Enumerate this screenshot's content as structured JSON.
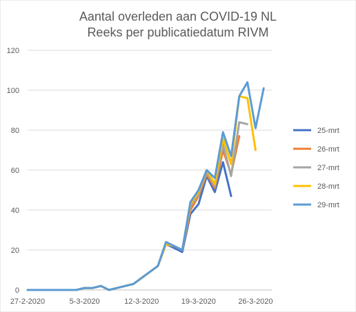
{
  "chart_data": {
    "type": "line",
    "title": [
      "Aantal overleden aan COVID-19 NL",
      "Reeks per publicatiedatum RIVM"
    ],
    "xlabel": "",
    "ylabel": "",
    "ylim": [
      0,
      120
    ],
    "yticks": [
      0,
      20,
      40,
      60,
      80,
      100,
      120
    ],
    "x": [
      "27-2-2020",
      "28-2-2020",
      "29-2-2020",
      "1-3-2020",
      "2-3-2020",
      "3-3-2020",
      "4-3-2020",
      "5-3-2020",
      "6-3-2020",
      "7-3-2020",
      "8-3-2020",
      "9-3-2020",
      "10-3-2020",
      "11-3-2020",
      "12-3-2020",
      "13-3-2020",
      "14-3-2020",
      "15-3-2020",
      "16-3-2020",
      "17-3-2020",
      "18-3-2020",
      "19-3-2020",
      "20-3-2020",
      "21-3-2020",
      "22-3-2020",
      "23-3-2020",
      "24-3-2020",
      "25-3-2020",
      "26-3-2020",
      "27-3-2020",
      "28-3-2020"
    ],
    "xtick_labels": [
      "27-2-2020",
      "5-3-2020",
      "12-3-2020",
      "19-3-2020",
      "26-3-2020"
    ],
    "grid": true,
    "legend_position": "right",
    "series": [
      {
        "name": "25-mrt",
        "color": "#4472c4",
        "values": [
          0,
          0,
          0,
          0,
          0,
          0,
          0,
          1,
          1,
          2,
          0,
          1,
          2,
          3,
          6,
          9,
          12,
          23,
          21,
          19,
          38,
          43,
          57,
          49,
          64,
          47,
          null,
          null,
          null,
          null,
          null
        ]
      },
      {
        "name": "26-mrt",
        "color": "#ed7d31",
        "values": [
          0,
          0,
          0,
          0,
          0,
          0,
          0,
          1,
          1,
          2,
          0,
          1,
          2,
          3,
          6,
          9,
          12,
          23,
          22,
          20,
          40,
          47,
          58,
          51,
          70,
          58,
          77,
          null,
          null,
          null,
          null
        ]
      },
      {
        "name": "27-mrt",
        "color": "#a5a5a5",
        "values": [
          0,
          0,
          0,
          0,
          0,
          0,
          0,
          1,
          1,
          2,
          0,
          1,
          2,
          3,
          6,
          9,
          12,
          23,
          22,
          20,
          42,
          48,
          59,
          52,
          73,
          57,
          84,
          83,
          null,
          null,
          null
        ]
      },
      {
        "name": "28-mrt",
        "color": "#ffc000",
        "values": [
          0,
          0,
          0,
          0,
          0,
          0,
          0,
          1,
          1,
          2,
          0,
          1,
          2,
          3,
          6,
          9,
          12,
          23,
          22,
          20,
          43,
          49,
          60,
          53,
          76,
          63,
          97,
          96,
          70,
          null,
          null
        ]
      },
      {
        "name": "29-mrt",
        "color": "#5b9bd5",
        "values": [
          0,
          0,
          0,
          0,
          0,
          0,
          0,
          1,
          1,
          2,
          0,
          1,
          2,
          3,
          6,
          9,
          12,
          24,
          22,
          20,
          44,
          50,
          60,
          56,
          79,
          67,
          97,
          104,
          81,
          101,
          null
        ]
      }
    ]
  }
}
